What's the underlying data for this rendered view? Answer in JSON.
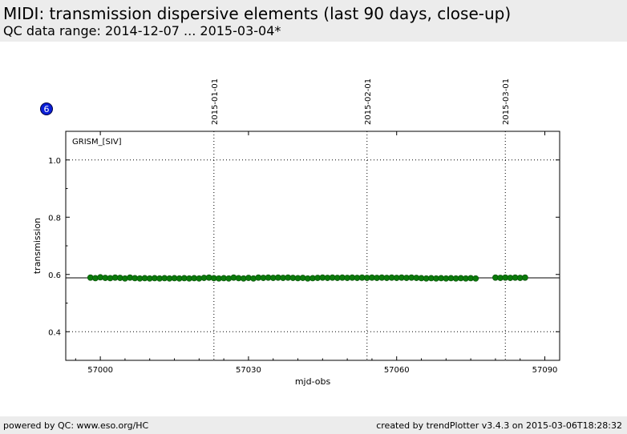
{
  "header": {
    "title": "MIDI: transmission dispersive elements (last 90 days, close-up)",
    "subtitle": "QC data range: 2014-12-07 ... 2015-03-04*"
  },
  "badge": "6",
  "footer": {
    "left": "powered by QC: www.eso.org/HC",
    "right": "created by trendPlotter v3.4.3 on 2015-03-06T18:28:32"
  },
  "chart_data": {
    "type": "scatter",
    "title": "",
    "annotation": "GRISM_[SIV]",
    "xlabel": "mjd-obs",
    "ylabel": "transmission",
    "xlim": [
      56993,
      57093
    ],
    "ylim": [
      0.3,
      1.1
    ],
    "xticks": [
      57000,
      57030,
      57060,
      57090
    ],
    "yticks": [
      0.4,
      0.6,
      0.8,
      1.0
    ],
    "ytick_labels": [
      "0.4",
      "0.6",
      "0.8",
      "1.0"
    ],
    "grid": "dotted at 0.4 and 1.0",
    "reference_line": 0.588,
    "date_markers": [
      {
        "label": "2015-01-01",
        "mjd": 57023
      },
      {
        "label": "2015-02-01",
        "mjd": 57054
      },
      {
        "label": "2015-03-01",
        "mjd": 57082
      }
    ],
    "marker_color": "#0a7a0a",
    "series": [
      {
        "x": [
          56998,
          56999,
          57000,
          57001,
          57002,
          57003,
          57004,
          57005,
          57006,
          57007,
          57008,
          57009,
          57010,
          57011,
          57012,
          57013,
          57014,
          57015,
          57016,
          57017,
          57018,
          57019,
          57020,
          57021,
          57022,
          57023,
          57024,
          57025,
          57026,
          57027,
          57028,
          57029,
          57030,
          57031,
          57032,
          57033,
          57034,
          57035,
          57036,
          57037,
          57038,
          57039,
          57040,
          57041,
          57042,
          57043,
          57044,
          57045,
          57046,
          57047,
          57048,
          57049,
          57050,
          57051,
          57052,
          57053,
          57054,
          57055,
          57056,
          57057,
          57058,
          57059,
          57060,
          57061,
          57062,
          57063,
          57064,
          57065,
          57066,
          57067,
          57068,
          57069,
          57070,
          57071,
          57072,
          57073,
          57074,
          57075,
          57076,
          57080,
          57081,
          57082,
          57083,
          57084,
          57085,
          57086
        ],
        "y": [
          0.589,
          0.587,
          0.59,
          0.588,
          0.587,
          0.589,
          0.588,
          0.586,
          0.589,
          0.587,
          0.586,
          0.587,
          0.586,
          0.587,
          0.586,
          0.587,
          0.586,
          0.587,
          0.586,
          0.587,
          0.586,
          0.587,
          0.586,
          0.588,
          0.589,
          0.587,
          0.586,
          0.587,
          0.586,
          0.589,
          0.587,
          0.586,
          0.588,
          0.586,
          0.589,
          0.588,
          0.589,
          0.588,
          0.589,
          0.588,
          0.589,
          0.588,
          0.587,
          0.588,
          0.586,
          0.587,
          0.588,
          0.589,
          0.588,
          0.589,
          0.588,
          0.589,
          0.588,
          0.589,
          0.588,
          0.589,
          0.588,
          0.589,
          0.588,
          0.589,
          0.588,
          0.589,
          0.588,
          0.589,
          0.588,
          0.589,
          0.588,
          0.587,
          0.586,
          0.587,
          0.586,
          0.587,
          0.586,
          0.587,
          0.586,
          0.587,
          0.586,
          0.587,
          0.586,
          0.589,
          0.588,
          0.589,
          0.588,
          0.589,
          0.588,
          0.589
        ]
      }
    ]
  }
}
